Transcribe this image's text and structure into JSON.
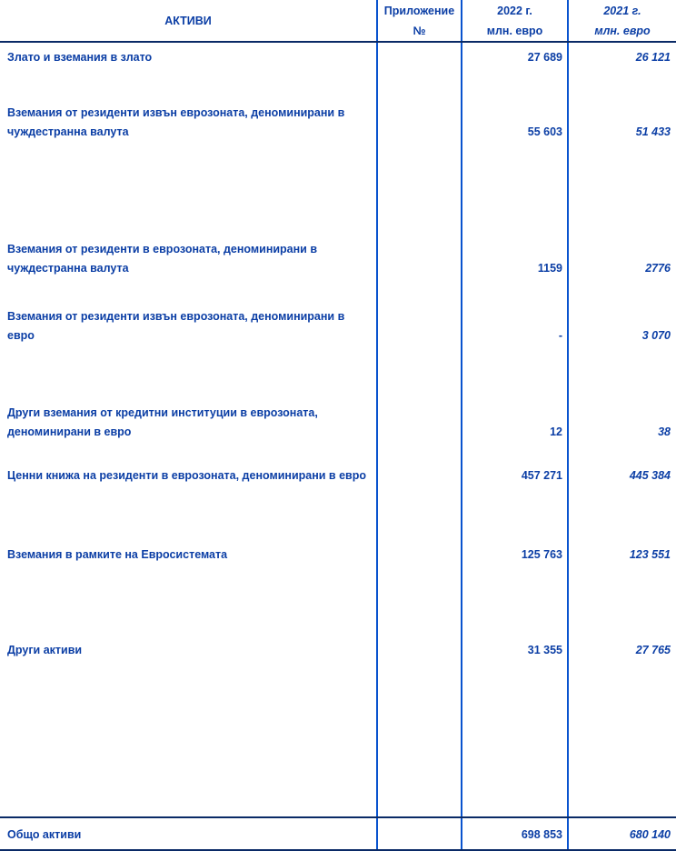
{
  "colors": {
    "text_blue": "#0b3ea5",
    "vertical_rule_blue": "#0953ce",
    "horizontal_rule_navy": "#0a2a66",
    "background": "#ffffff"
  },
  "header": {
    "assets": "АКТИВИ",
    "appendix_line1": "Приложение",
    "appendix_line2": "№",
    "col2022_line1": "2022 г.",
    "col2022_line2": "млн. евро",
    "col2021_line1": "2021 г.",
    "col2021_line2": "млн. евро"
  },
  "rows": [
    {
      "label": "Злато и вземания в злато",
      "appendix": "",
      "y2022": "27 689",
      "y2021": "26 121"
    },
    {
      "label": "Вземания от резиденти извън еврозоната, деноминирани в чуждестранна валута",
      "appendix": "",
      "y2022": "55 603",
      "y2021": "51 433"
    },
    {
      "label": "Вземания от резиденти в еврозоната, деноминирани в чуждестранна валута",
      "appendix": "",
      "y2022": "1159",
      "y2021": "2776"
    },
    {
      "label": "Вземания от резиденти извън еврозоната, деноминирани в евро",
      "appendix": "",
      "y2022": "-",
      "y2021": "3 070"
    },
    {
      "label": "Други вземания от кредитни институции в еврозоната, деноминирани в евро",
      "appendix": "",
      "y2022": "12",
      "y2021": "38"
    },
    {
      "label": "Ценни книжа на резиденти в еврозоната, деноминирани в евро",
      "appendix": "",
      "y2022": "457 271",
      "y2021": "445 384"
    },
    {
      "label": "Вземания в рамките на Евросистемата",
      "appendix": "",
      "y2022": "125 763",
      "y2021": "123 551"
    },
    {
      "label": "Други активи",
      "appendix": "",
      "y2022": "31 355",
      "y2021": "27 765"
    }
  ],
  "total": {
    "label": "Общо активи",
    "appendix": "",
    "y2022": "698 853",
    "y2021": "680 140"
  }
}
